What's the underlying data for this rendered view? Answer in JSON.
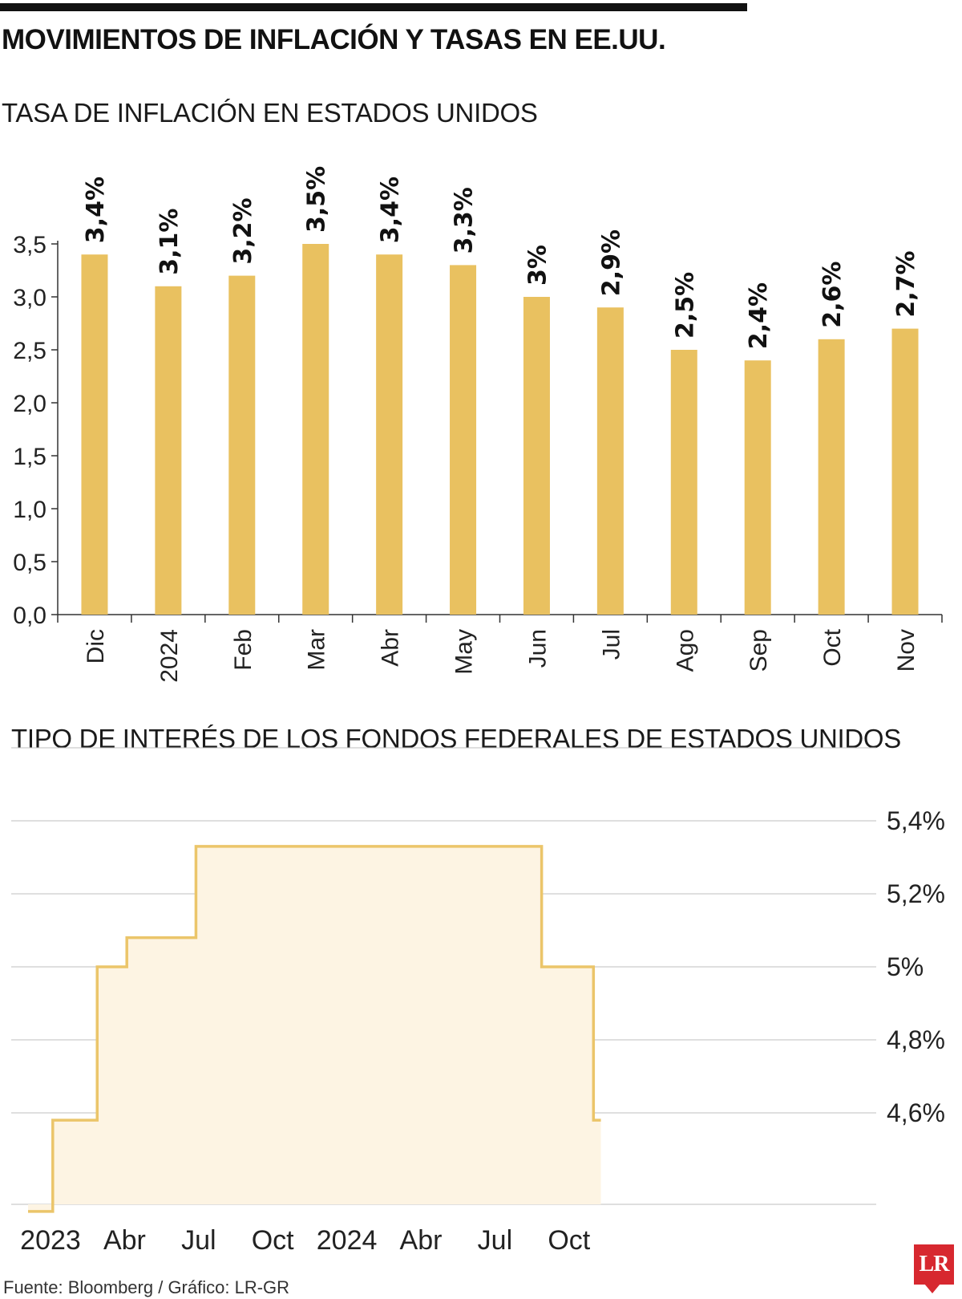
{
  "title": "MOVIMIENTOS DE INFLACIÓN Y TASAS EN EE.UU.",
  "colors": {
    "bar": "#E9C160",
    "step_line": "#EBC56A",
    "step_fill": "#FDF4E3",
    "grid": "#BFBFBF",
    "axis": "#333333",
    "logo": "#D7282F"
  },
  "chart_data": [
    {
      "type": "bar",
      "title": "TASA DE INFLACIÓN EN ESTADOS UNIDOS",
      "categories": [
        "Dic",
        "2024",
        "Feb",
        "Mar",
        "Abr",
        "May",
        "Jun",
        "Jul",
        "Ago",
        "Sep",
        "Oct",
        "Nov"
      ],
      "values": [
        3.4,
        3.1,
        3.2,
        3.5,
        3.4,
        3.3,
        3.0,
        2.9,
        2.5,
        2.4,
        2.6,
        2.7
      ],
      "data_labels": [
        "3,4%",
        "3,1%",
        "3,2%",
        "3,5%",
        "3,4%",
        "3,3%",
        "3%",
        "2,9%",
        "2,5%",
        "2,4%",
        "2,6%",
        "2,7%"
      ],
      "yticks": [
        0,
        0.5,
        1.0,
        1.5,
        2.0,
        2.5,
        3.0,
        3.5
      ],
      "ytick_labels": [
        "0,0",
        "0,5",
        "1,0",
        "1,5",
        "2,0",
        "2,5",
        "3,0",
        "3,5"
      ],
      "ylim": [
        0,
        3.5
      ],
      "xlabel": "",
      "ylabel": ""
    },
    {
      "type": "line",
      "style": "step",
      "title": "TIPO DE INTERÉS DE LOS FONDOS FEDERALES DE ESTADOS UNIDOS",
      "x_start": "2023-01",
      "x_end": "2024-12",
      "steps": [
        {
          "from": "2023-01",
          "value": 4.33
        },
        {
          "from": "2023-02",
          "value": 4.58
        },
        {
          "from": "2023-03.8",
          "value": 5.0
        },
        {
          "from": "2023-05",
          "value": 5.08
        },
        {
          "from": "2023-07.8",
          "value": 5.33
        },
        {
          "from": "2024-09.8",
          "value": 5.0
        },
        {
          "from": "2024-11.9",
          "value": 4.58
        }
      ],
      "step_values": [
        4.33,
        4.58,
        5.0,
        5.08,
        5.33,
        5.0,
        4.58
      ],
      "x_tick_labels": [
        "2023",
        "Abr",
        "Jul",
        "Oct",
        "2024",
        "Abr",
        "Jul",
        "Oct"
      ],
      "x_tick_months": [
        0,
        3,
        6,
        9,
        12,
        15,
        18,
        21
      ],
      "y_gridlines": [
        4.6,
        4.8,
        5.0,
        5.2,
        5.4,
        5.6
      ],
      "ytick_values": [
        5.4,
        5.2,
        5.0,
        4.8,
        4.6
      ],
      "ytick_labels": [
        "5,4%",
        "5,2%",
        "5%",
        "4,8%",
        "4,6%"
      ],
      "ylim": [
        4.24,
        5.6
      ],
      "y_axis_side": "right"
    }
  ],
  "source": "Fuente: Bloomberg / Gráfico: LR-GR",
  "logo_text": "LR"
}
